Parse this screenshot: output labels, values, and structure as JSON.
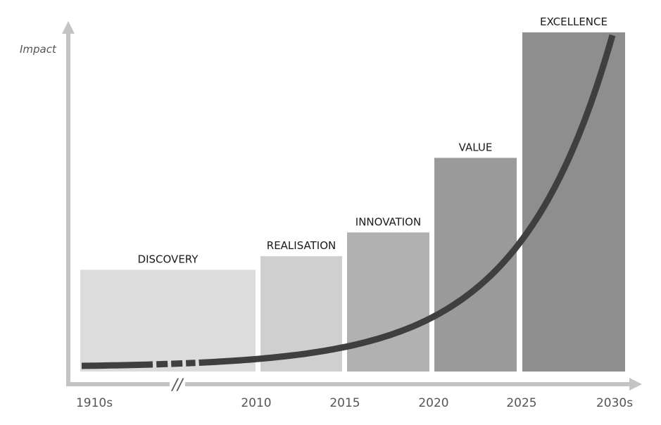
{
  "chart_data": {
    "type": "bar",
    "title": "",
    "xlabel": "",
    "ylabel": "Impact",
    "categories": [
      "DISCOVERY",
      "REALISATION",
      "INNOVATION",
      "VALUE",
      "EXCELLENCE"
    ],
    "periods": [
      "1910s–2010",
      "2010–2015",
      "2015–2020",
      "2020–2025",
      "2025–2030s"
    ],
    "values": [
      30,
      34,
      41,
      63,
      100
    ],
    "ylim": [
      0,
      100
    ],
    "x_ticks": [
      "1910s",
      "2010",
      "2015",
      "2020",
      "2025",
      "2030s"
    ],
    "axis_break": "//",
    "bar_colors": [
      "#dcdcdc",
      "#cfcfcf",
      "#b1b1b1",
      "#9a9a9a",
      "#8e8e8e"
    ],
    "curve": {
      "type": "exponential",
      "color": "#3f3f3f"
    },
    "axis_color": "#c4c4c4",
    "grid": false,
    "legend": "none"
  }
}
